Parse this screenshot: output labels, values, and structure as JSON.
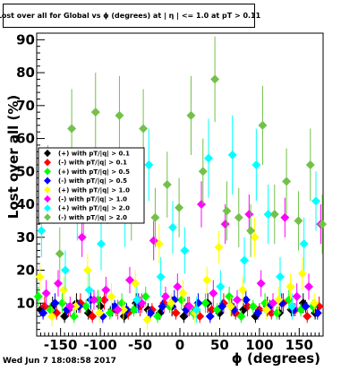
{
  "header": {
    "title": "Lost over all for Global vs ϕ (degrees) at | η | <= 1.0 at pT > 0.11"
  },
  "footer": {
    "date": "Wed Jun  7 18:08:58 2017"
  },
  "chart_data": {
    "type": "scatter",
    "title": "Lost over all for Global vs ϕ (degrees) at | η | <= 1.0 at pT > 0.11",
    "xlabel": "ϕ (degrees)",
    "ylabel": "Lost over all (%)",
    "xlim": [
      -180,
      180
    ],
    "ylim": [
      0,
      92
    ],
    "x_ticks": [
      -150,
      -100,
      -50,
      0,
      50,
      100,
      150
    ],
    "y_ticks": [
      10,
      20,
      30,
      40,
      50,
      60,
      70,
      80,
      90
    ],
    "grid": false,
    "legend_position": "middle-left",
    "series": [
      {
        "name": "(+) with pT/|q| > 0.1",
        "color": "#000000",
        "x": [
          -175,
          -160,
          -145,
          -130,
          -115,
          -100,
          -85,
          -70,
          -55,
          -40,
          -25,
          -10,
          5,
          20,
          35,
          50,
          65,
          80,
          95,
          110,
          125,
          140,
          155,
          170
        ],
        "y": [
          8,
          9,
          6,
          10,
          7,
          9,
          8,
          6,
          10,
          8,
          7,
          9,
          6,
          8,
          10,
          7,
          9,
          8,
          6,
          9,
          7,
          8,
          10,
          7
        ],
        "err": [
          2,
          3,
          2,
          3,
          2,
          3,
          2,
          2,
          3,
          2,
          2,
          3,
          2,
          2,
          3,
          2,
          3,
          2,
          2,
          3,
          2,
          2,
          3,
          2
        ]
      },
      {
        "name": "(-) with pT/|q| > 0.1",
        "color": "#ff0000",
        "x": [
          -170,
          -155,
          -140,
          -125,
          -110,
          -95,
          -80,
          -65,
          -50,
          -35,
          -20,
          -5,
          10,
          25,
          40,
          55,
          70,
          85,
          100,
          115,
          130,
          145,
          160,
          175
        ],
        "y": [
          9,
          7,
          8,
          10,
          6,
          11,
          8,
          7,
          9,
          8,
          10,
          7,
          9,
          6,
          8,
          10,
          7,
          9,
          8,
          7,
          10,
          8,
          6,
          9
        ],
        "err": [
          3,
          2,
          2,
          3,
          2,
          3,
          2,
          2,
          3,
          2,
          3,
          2,
          3,
          2,
          2,
          3,
          2,
          3,
          2,
          2,
          3,
          2,
          2,
          3
        ]
      },
      {
        "name": "(+) with pT/|q| > 0.5",
        "color": "#00ff00",
        "x": [
          -178,
          -163,
          -148,
          -133,
          -118,
          -103,
          -88,
          -73,
          -58,
          -43,
          -28,
          -13,
          2,
          17,
          32,
          47,
          62,
          77,
          92,
          107,
          122,
          137,
          152,
          167
        ],
        "y": [
          12,
          8,
          10,
          6,
          9,
          11,
          7,
          10,
          8,
          12,
          6,
          9,
          11,
          7,
          10,
          8,
          12,
          6,
          9,
          10,
          7,
          11,
          8,
          9
        ],
        "err": [
          3,
          2,
          3,
          2,
          2,
          3,
          2,
          3,
          2,
          3,
          2,
          2,
          3,
          2,
          3,
          2,
          3,
          2,
          2,
          3,
          2,
          3,
          2,
          2
        ]
      },
      {
        "name": "(-) with pT/|q| > 0.5",
        "color": "#0000ff",
        "x": [
          -172,
          -157,
          -142,
          -127,
          -112,
          -97,
          -82,
          -67,
          -52,
          -37,
          -22,
          -7,
          8,
          23,
          38,
          53,
          68,
          83,
          98,
          113,
          128,
          143,
          158,
          173
        ],
        "y": [
          7,
          10,
          8,
          9,
          11,
          6,
          9,
          8,
          10,
          7,
          9,
          11,
          8,
          10,
          6,
          9,
          8,
          11,
          7,
          9,
          10,
          8,
          9,
          7
        ],
        "err": [
          2,
          3,
          2,
          2,
          3,
          2,
          2,
          2,
          3,
          2,
          2,
          3,
          2,
          3,
          2,
          2,
          2,
          3,
          2,
          2,
          3,
          2,
          2,
          2
        ]
      },
      {
        "name": "(+) with pT/|q| > 1.0",
        "color": "#ffff00",
        "x": [
          -176,
          -161,
          -146,
          -131,
          -116,
          -101,
          -86,
          -71,
          -56,
          -41,
          -26,
          -11,
          4,
          19,
          34,
          49,
          64,
          79,
          94,
          109,
          124,
          139,
          154,
          169
        ],
        "y": [
          18,
          6,
          14,
          9,
          20,
          7,
          12,
          8,
          16,
          5,
          28,
          10,
          13,
          7,
          17,
          27,
          9,
          14,
          30,
          8,
          11,
          15,
          19,
          10
        ],
        "err": [
          4,
          3,
          4,
          3,
          5,
          3,
          4,
          3,
          4,
          3,
          6,
          3,
          4,
          3,
          4,
          5,
          3,
          4,
          6,
          3,
          4,
          4,
          5,
          3
        ]
      },
      {
        "name": "(-) with pT/|q| > 1.0",
        "color": "#ff00ff",
        "x": [
          -168,
          -153,
          -138,
          -123,
          -108,
          -93,
          -78,
          -63,
          -48,
          -33,
          -18,
          -3,
          12,
          27,
          42,
          57,
          72,
          87,
          102,
          117,
          132,
          147,
          162,
          177
        ],
        "y": [
          13,
          16,
          9,
          30,
          11,
          14,
          8,
          17,
          10,
          29,
          12,
          15,
          9,
          40,
          13,
          34,
          11,
          37,
          16,
          10,
          36,
          12,
          15,
          34
        ],
        "err": [
          4,
          4,
          3,
          6,
          3,
          4,
          3,
          4,
          3,
          6,
          3,
          4,
          3,
          7,
          4,
          6,
          3,
          6,
          4,
          3,
          6,
          4,
          4,
          6
        ]
      },
      {
        "name": "(+) with pT/|q| > 2.0",
        "color": "#00ffff",
        "x": [
          -174,
          -159,
          -144,
          -129,
          -114,
          -99,
          -84,
          -69,
          -54,
          -39,
          -24,
          -9,
          6,
          21,
          36,
          51,
          66,
          81,
          96,
          111,
          126,
          141,
          156,
          171
        ],
        "y": [
          32,
          43,
          20,
          38,
          14,
          28,
          45,
          36,
          11,
          52,
          18,
          33,
          26,
          8,
          54,
          15,
          55,
          23,
          52,
          37,
          18,
          9,
          28,
          41
        ],
        "err": [
          8,
          9,
          6,
          9,
          5,
          8,
          10,
          9,
          4,
          11,
          6,
          8,
          7,
          4,
          12,
          5,
          12,
          7,
          11,
          9,
          6,
          4,
          8,
          9
        ]
      },
      {
        "name": "(-) with pT/|q| > 2.0",
        "color": "#73c14a",
        "x": [
          -166,
          -151,
          -136,
          -121,
          -106,
          -91,
          -76,
          -61,
          -46,
          -31,
          -16,
          -1,
          14,
          29,
          44,
          59,
          74,
          89,
          104,
          119,
          134,
          149,
          164,
          179
        ],
        "y": [
          48,
          25,
          63,
          40,
          68,
          44,
          67,
          38,
          63,
          36,
          46,
          39,
          67,
          50,
          78,
          38,
          36,
          32,
          64,
          37,
          47,
          35,
          52,
          34
        ],
        "err": [
          10,
          8,
          12,
          9,
          12,
          10,
          12,
          9,
          12,
          9,
          10,
          9,
          12,
          10,
          13,
          9,
          9,
          8,
          12,
          9,
          10,
          9,
          11,
          9
        ]
      }
    ]
  }
}
